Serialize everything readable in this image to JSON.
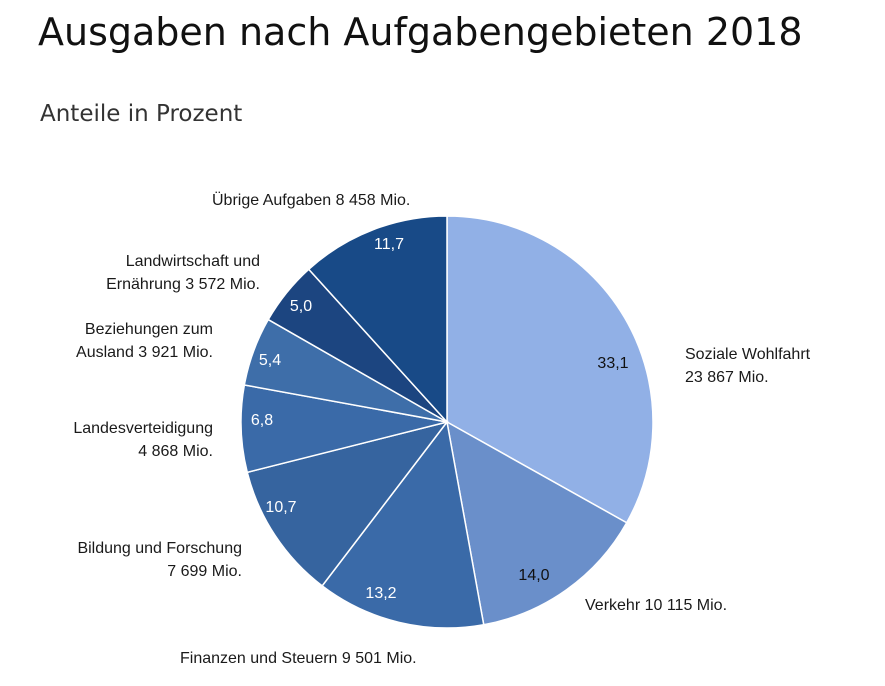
{
  "title": "Ausgaben nach Aufgabengebieten 2018",
  "subtitle": "Anteile in Prozent",
  "chart_data": {
    "type": "pie",
    "title": "Ausgaben nach Aufgabengebieten 2018",
    "subtitle": "Anteile in Prozent",
    "start_angle": "12 o'clock",
    "direction": "clockwise",
    "slices": [
      {
        "name": "Soziale Wohlfahrt",
        "amount": "23 867 Mio.",
        "value": 33.1,
        "value_label": "33,1",
        "color": "#91b0e6",
        "label_lines": [
          "Soziale Wohlfahrt",
          "23 867 Mio."
        ]
      },
      {
        "name": "Verkehr",
        "amount": "10 115 Mio.",
        "value": 14.0,
        "value_label": "14,0",
        "color": "#6a8fca",
        "label_lines": [
          "Verkehr 10 115 Mio."
        ]
      },
      {
        "name": "Finanzen und Steuern",
        "amount": "9 501 Mio.",
        "value": 13.2,
        "value_label": "13,2",
        "color": "#3a6aa8",
        "label_lines": [
          "Finanzen und Steuern 9 501 Mio."
        ]
      },
      {
        "name": "Bildung und Forschung",
        "amount": "7 699 Mio.",
        "value": 10.7,
        "value_label": "10,7",
        "color": "#36649f",
        "label_lines": [
          "Bildung und Forschung",
          "7 699 Mio."
        ]
      },
      {
        "name": "Landesverteidigung",
        "amount": "4 868 Mio.",
        "value": 6.8,
        "value_label": "6,8",
        "color": "#3a6aa8",
        "label_lines": [
          "Landesverteidigung",
          "4 868 Mio."
        ]
      },
      {
        "name": "Beziehungen zum Ausland",
        "amount": "3 921 Mio.",
        "value": 5.4,
        "value_label": "5,4",
        "color": "#3e6ea9",
        "label_lines": [
          "Beziehungen zum",
          "Ausland 3 921 Mio."
        ]
      },
      {
        "name": "Landwirtschaft und Ernährung",
        "amount": "3 572 Mio.",
        "value": 5.0,
        "value_label": "5,0",
        "color": "#1c4580",
        "label_lines": [
          "Landwirtschaft und",
          "Ernährung 3 572 Mio."
        ]
      },
      {
        "name": "Übrige Aufgaben",
        "amount": "8 458 Mio.",
        "value": 11.7,
        "value_label": "11,7",
        "color": "#184a87",
        "label_lines": [
          "Übrige Aufgaben 8 458 Mio."
        ]
      }
    ]
  }
}
